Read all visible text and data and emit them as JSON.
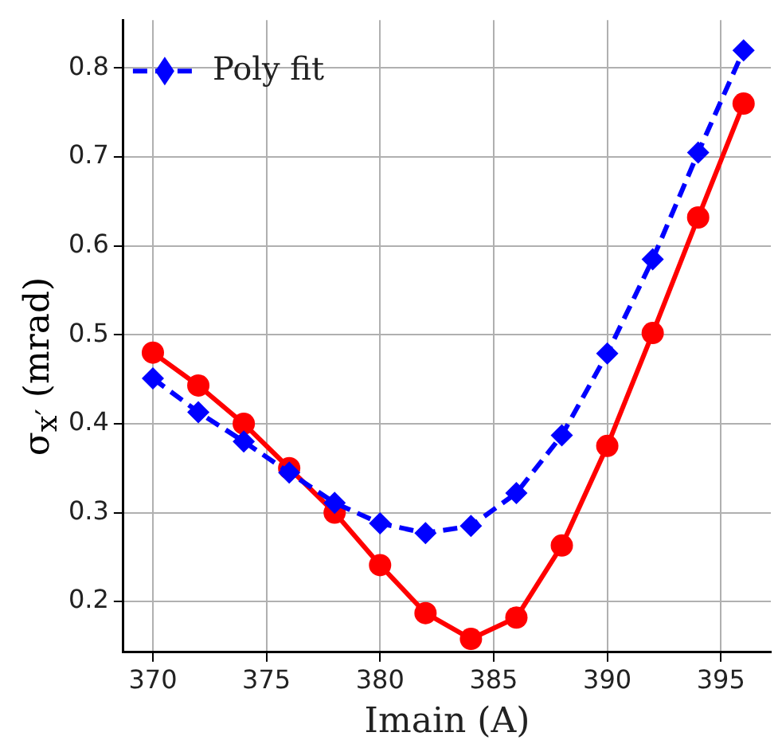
{
  "chart_data": {
    "type": "line",
    "xlabel": "Imain (A)",
    "ylabel": "σ$_{x′}$ (mrad)",
    "x": [
      370,
      372,
      374,
      376,
      378,
      380,
      382,
      384,
      386,
      388,
      390,
      392,
      394,
      396
    ],
    "series": [
      {
        "color": "#ff0000",
        "marker": "circle",
        "line_style": "solid",
        "values": [
          0.48,
          0.443,
          0.4,
          0.35,
          0.3,
          0.241,
          0.187,
          0.158,
          0.182,
          0.263,
          0.375,
          0.502,
          0.632,
          0.76
        ]
      },
      {
        "name": "Poly fit",
        "color": "#0000ff",
        "marker": "diamond",
        "line_style": "dashed",
        "values": [
          0.451,
          0.413,
          0.38,
          0.345,
          0.311,
          0.288,
          0.277,
          0.285,
          0.322,
          0.387,
          0.479,
          0.585,
          0.705,
          0.82
        ]
      }
    ],
    "xlim": [
      368.7,
      397.2
    ],
    "xticks": [
      370,
      375,
      380,
      385,
      390,
      395
    ],
    "ylim": [
      0.143,
      0.854
    ],
    "yticks": [
      0.2,
      0.3,
      0.4,
      0.5,
      0.6,
      0.7,
      0.8
    ],
    "grid": true,
    "legend": "top left"
  }
}
